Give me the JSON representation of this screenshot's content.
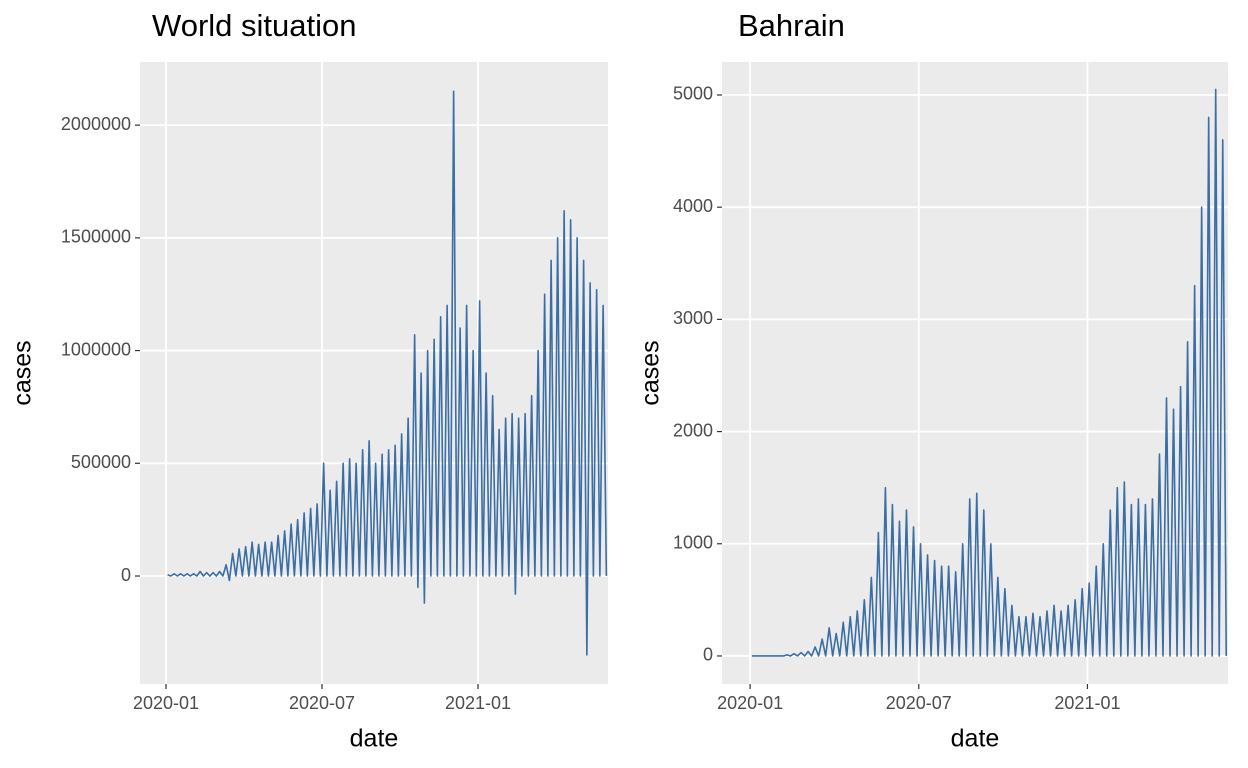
{
  "chart_data": [
    {
      "type": "line",
      "title": "World situation",
      "x_label": "date",
      "y_label": "cases",
      "color": "#3a6ea5",
      "grid": true,
      "xlim": [
        "2019-12",
        "2021-06"
      ],
      "xticks": [
        "2020-01",
        "2020-07",
        "2021-01"
      ],
      "ylim": [
        -479000,
        2280000
      ],
      "yticks": [
        0,
        500000,
        1000000,
        1500000,
        2000000
      ],
      "x": [
        "2020-01",
        "2020-01",
        "2020-01",
        "2020-01",
        "2020-01",
        "2020-01",
        "2020-01",
        "2020-01",
        "2020-02",
        "2020-02",
        "2020-02",
        "2020-02",
        "2020-02",
        "2020-02",
        "2020-02",
        "2020-02",
        "2020-03",
        "2020-03",
        "2020-03",
        "2020-03",
        "2020-03",
        "2020-03",
        "2020-03",
        "2020-03",
        "2020-04",
        "2020-04",
        "2020-04",
        "2020-04",
        "2020-04",
        "2020-04",
        "2020-04",
        "2020-04",
        "2020-05",
        "2020-05",
        "2020-05",
        "2020-05",
        "2020-05",
        "2020-05",
        "2020-05",
        "2020-05",
        "2020-06",
        "2020-06",
        "2020-06",
        "2020-06",
        "2020-06",
        "2020-06",
        "2020-06",
        "2020-06",
        "2020-07",
        "2020-07",
        "2020-07",
        "2020-07",
        "2020-07",
        "2020-07",
        "2020-07",
        "2020-07",
        "2020-08",
        "2020-08",
        "2020-08",
        "2020-08",
        "2020-08",
        "2020-08",
        "2020-08",
        "2020-08",
        "2020-09",
        "2020-09",
        "2020-09",
        "2020-09",
        "2020-09",
        "2020-09",
        "2020-09",
        "2020-09",
        "2020-10",
        "2020-10",
        "2020-10",
        "2020-10",
        "2020-10",
        "2020-10",
        "2020-10",
        "2020-10",
        "2020-11",
        "2020-11",
        "2020-11",
        "2020-11",
        "2020-11",
        "2020-11",
        "2020-11",
        "2020-11",
        "2020-12",
        "2020-12",
        "2020-12",
        "2020-12",
        "2020-12",
        "2020-12",
        "2020-12",
        "2020-12",
        "2021-01",
        "2021-01",
        "2021-01",
        "2021-01",
        "2021-01",
        "2021-01",
        "2021-01",
        "2021-01",
        "2021-02",
        "2021-02",
        "2021-02",
        "2021-02",
        "2021-02",
        "2021-02",
        "2021-02",
        "2021-02",
        "2021-03",
        "2021-03",
        "2021-03",
        "2021-03",
        "2021-03",
        "2021-03",
        "2021-03",
        "2021-03",
        "2021-04",
        "2021-04",
        "2021-04",
        "2021-04",
        "2021-04",
        "2021-04",
        "2021-04",
        "2021-04",
        "2021-05",
        "2021-05",
        "2021-05",
        "2021-05",
        "2021-05",
        "2021-05",
        "2021-05",
        "2021-05"
      ],
      "values": [
        5000,
        0,
        10000,
        0,
        10000,
        0,
        10000,
        0,
        10000,
        0,
        20000,
        0,
        15000,
        0,
        15000,
        0,
        20000,
        0,
        50000,
        -20000,
        100000,
        0,
        120000,
        0,
        130000,
        0,
        150000,
        0,
        140000,
        0,
        150000,
        0,
        150000,
        0,
        180000,
        0,
        200000,
        0,
        230000,
        0,
        250000,
        0,
        280000,
        0,
        300000,
        0,
        320000,
        0,
        500000,
        0,
        380000,
        0,
        420000,
        0,
        500000,
        0,
        520000,
        0,
        500000,
        0,
        560000,
        0,
        600000,
        0,
        500000,
        0,
        540000,
        0,
        560000,
        0,
        580000,
        0,
        630000,
        0,
        700000,
        0,
        1070000,
        -50000,
        900000,
        -120000,
        1000000,
        0,
        1050000,
        0,
        1150000,
        0,
        1200000,
        0,
        2150000,
        0,
        1100000,
        0,
        1200000,
        0,
        1000000,
        0,
        1220000,
        0,
        900000,
        0,
        800000,
        0,
        650000,
        0,
        700000,
        0,
        720000,
        -80000,
        700000,
        0,
        720000,
        0,
        800000,
        0,
        1000000,
        0,
        1250000,
        0,
        1400000,
        0,
        1500000,
        0,
        1620000,
        0,
        1580000,
        0,
        1500000,
        0,
        1400000,
        -350000,
        1300000,
        0,
        1270000,
        0,
        1200000,
        0
      ]
    },
    {
      "type": "line",
      "title": "Bahrain",
      "x_label": "date",
      "y_label": "cases",
      "color": "#3a6ea5",
      "grid": true,
      "xlim": [
        "2019-12",
        "2021-06"
      ],
      "xticks": [
        "2020-01",
        "2020-07",
        "2021-01"
      ],
      "ylim": [
        -250,
        5294
      ],
      "yticks": [
        0,
        1000,
        2000,
        3000,
        4000,
        5000
      ],
      "x": [
        "2020-01",
        "2020-01",
        "2020-01",
        "2020-01",
        "2020-01",
        "2020-01",
        "2020-01",
        "2020-01",
        "2020-02",
        "2020-02",
        "2020-02",
        "2020-02",
        "2020-02",
        "2020-02",
        "2020-02",
        "2020-02",
        "2020-03",
        "2020-03",
        "2020-03",
        "2020-03",
        "2020-03",
        "2020-03",
        "2020-03",
        "2020-03",
        "2020-04",
        "2020-04",
        "2020-04",
        "2020-04",
        "2020-04",
        "2020-04",
        "2020-04",
        "2020-04",
        "2020-05",
        "2020-05",
        "2020-05",
        "2020-05",
        "2020-05",
        "2020-05",
        "2020-05",
        "2020-05",
        "2020-06",
        "2020-06",
        "2020-06",
        "2020-06",
        "2020-06",
        "2020-06",
        "2020-06",
        "2020-06",
        "2020-07",
        "2020-07",
        "2020-07",
        "2020-07",
        "2020-07",
        "2020-07",
        "2020-07",
        "2020-07",
        "2020-08",
        "2020-08",
        "2020-08",
        "2020-08",
        "2020-08",
        "2020-08",
        "2020-08",
        "2020-08",
        "2020-09",
        "2020-09",
        "2020-09",
        "2020-09",
        "2020-09",
        "2020-09",
        "2020-09",
        "2020-09",
        "2020-10",
        "2020-10",
        "2020-10",
        "2020-10",
        "2020-10",
        "2020-10",
        "2020-10",
        "2020-10",
        "2020-11",
        "2020-11",
        "2020-11",
        "2020-11",
        "2020-11",
        "2020-11",
        "2020-11",
        "2020-11",
        "2020-12",
        "2020-12",
        "2020-12",
        "2020-12",
        "2020-12",
        "2020-12",
        "2020-12",
        "2020-12",
        "2021-01",
        "2021-01",
        "2021-01",
        "2021-01",
        "2021-01",
        "2021-01",
        "2021-01",
        "2021-01",
        "2021-02",
        "2021-02",
        "2021-02",
        "2021-02",
        "2021-02",
        "2021-02",
        "2021-02",
        "2021-02",
        "2021-03",
        "2021-03",
        "2021-03",
        "2021-03",
        "2021-03",
        "2021-03",
        "2021-03",
        "2021-03",
        "2021-04",
        "2021-04",
        "2021-04",
        "2021-04",
        "2021-04",
        "2021-04",
        "2021-04",
        "2021-04",
        "2021-05",
        "2021-05",
        "2021-05",
        "2021-05",
        "2021-05",
        "2021-05",
        "2021-05",
        "2021-05"
      ],
      "values": [
        0,
        0,
        0,
        0,
        0,
        0,
        0,
        0,
        0,
        0,
        10,
        0,
        20,
        0,
        30,
        0,
        40,
        0,
        80,
        0,
        150,
        0,
        250,
        0,
        200,
        0,
        300,
        0,
        350,
        0,
        400,
        0,
        500,
        0,
        700,
        0,
        1100,
        0,
        1500,
        0,
        1350,
        0,
        1200,
        0,
        1300,
        0,
        1150,
        0,
        1000,
        0,
        900,
        0,
        850,
        0,
        800,
        0,
        800,
        0,
        750,
        0,
        1000,
        0,
        1400,
        0,
        1450,
        0,
        1300,
        0,
        1000,
        0,
        700,
        0,
        600,
        0,
        450,
        0,
        350,
        0,
        350,
        0,
        380,
        0,
        350,
        0,
        400,
        0,
        450,
        0,
        400,
        0,
        450,
        0,
        500,
        0,
        600,
        0,
        650,
        0,
        800,
        0,
        1000,
        0,
        1300,
        0,
        1500,
        0,
        1550,
        0,
        1350,
        0,
        1400,
        0,
        1350,
        0,
        1400,
        0,
        1800,
        0,
        2300,
        0,
        2200,
        0,
        2400,
        0,
        2800,
        0,
        3300,
        0,
        4000,
        0,
        4800,
        0,
        5050,
        0,
        4600,
        0
      ]
    }
  ]
}
